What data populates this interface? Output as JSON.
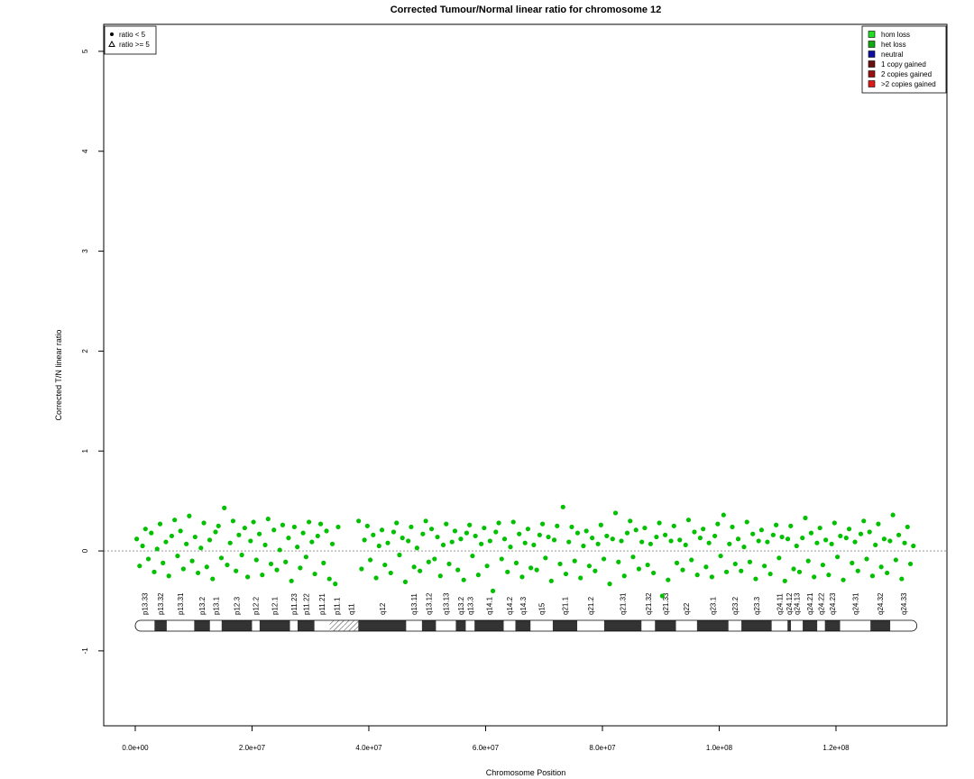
{
  "chart_data": {
    "type": "scatter",
    "title": "Corrected Tumour/Normal linear ratio for chromosome  12",
    "x_label": "Chromosome Position",
    "y_label": "Corrected T/N linear ratio",
    "xlim": [
      -5400000,
      139000000
    ],
    "ylim": [
      -1.75,
      5.27
    ],
    "xticks": [
      {
        "value": 0,
        "label": "0.0e+00"
      },
      {
        "value": 20000000,
        "label": "2.0e+07"
      },
      {
        "value": 40000000,
        "label": "4.0e+07"
      },
      {
        "value": 60000000,
        "label": "6.0e+07"
      },
      {
        "value": 80000000,
        "label": "8.0e+07"
      },
      {
        "value": 100000000,
        "label": "1.0e+08"
      },
      {
        "value": 120000000,
        "label": "1.2e+08"
      }
    ],
    "yticks": [
      -1,
      0,
      1,
      2,
      3,
      4,
      5
    ],
    "hline": 0,
    "legend": "top-left",
    "series": [
      {
        "name": "ratio < 5",
        "marker": "circle",
        "color": "#00c000",
        "x": [
          250000.0,
          750000.0,
          1250000.0,
          1750000.0,
          2250000.0,
          2750000.0,
          3250000.0,
          3750000.0,
          4250000.0,
          4750000.0,
          5250000.0,
          5750000.0,
          6250000.0,
          6750000.0,
          7250000.0,
          7750000.0,
          8250000.0,
          8750000.0,
          9250000.0,
          9750000.0,
          10250000.0,
          10750000.0,
          11250000.0,
          11750000.0,
          12250000.0,
          12750000.0,
          13250000.0,
          13750000.0,
          14250000.0,
          14750000.0,
          15250000.0,
          15750000.0,
          16250000.0,
          16750000.0,
          17250000.0,
          17750000.0,
          18250000.0,
          18750000.0,
          19250000.0,
          19750000.0,
          20250000.0,
          20750000.0,
          21250000.0,
          21750000.0,
          22250000.0,
          22750000.0,
          23250000.0,
          23750000.0,
          24250000.0,
          24750000.0,
          25250000.0,
          25750000.0,
          26250000.0,
          26750000.0,
          27250000.0,
          27750000.0,
          28250000.0,
          28750000.0,
          29250000.0,
          29750000.0,
          30250000.0,
          30750000.0,
          31250000.0,
          31750000.0,
          32250000.0,
          32750000.0,
          33250000.0,
          33750000.0,
          34250000.0,
          34750000.0,
          38250000.0,
          38750000.0,
          39250000.0,
          39750000.0,
          40250000.0,
          40750000.0,
          41250000.0,
          41750000.0,
          42250000.0,
          42750000.0,
          43250000.0,
          43750000.0,
          44250000.0,
          44750000.0,
          45250000.0,
          45750000.0,
          46250000.0,
          46750000.0,
          47250000.0,
          47750000.0,
          48250000.0,
          48750000.0,
          49250000.0,
          49750000.0,
          50250000.0,
          50750000.0,
          51250000.0,
          51750000.0,
          52250000.0,
          52750000.0,
          53250000.0,
          53750000.0,
          54250000.0,
          54750000.0,
          55250000.0,
          55750000.0,
          56250000.0,
          56750000.0,
          57250000.0,
          57750000.0,
          58250000.0,
          58750000.0,
          59250000.0,
          59750000.0,
          60250000.0,
          60750000.0,
          61250000.0,
          61750000.0,
          62250000.0,
          62750000.0,
          63250000.0,
          63750000.0,
          64250000.0,
          64750000.0,
          65250000.0,
          65750000.0,
          66250000.0,
          66750000.0,
          67250000.0,
          67750000.0,
          68250000.0,
          68750000.0,
          69250000.0,
          69750000.0,
          70250000.0,
          70750000.0,
          71250000.0,
          71750000.0,
          72250000.0,
          72750000.0,
          73250000.0,
          73750000.0,
          74250000.0,
          74750000.0,
          75250000.0,
          75750000.0,
          76250000.0,
          76750000.0,
          77250000.0,
          77750000.0,
          78250000.0,
          78750000.0,
          79250000.0,
          79750000.0,
          80250000.0,
          80750000.0,
          81250000.0,
          81750000.0,
          82250000.0,
          82750000.0,
          83250000.0,
          83750000.0,
          84250000.0,
          84750000.0,
          85250000.0,
          85750000.0,
          86250000.0,
          86750000.0,
          87250000.0,
          87750000.0,
          88250000.0,
          88750000.0,
          89250000.0,
          89750000.0,
          90250000.0,
          90750000.0,
          91250000.0,
          91750000.0,
          92250000.0,
          92750000.0,
          93250000.0,
          93750000.0,
          94250000.0,
          94750000.0,
          95250000.0,
          95750000.0,
          96250000.0,
          96750000.0,
          97250000.0,
          97750000.0,
          98250000.0,
          98750000.0,
          99250000.0,
          99750000.0,
          100250000.0,
          100750000.0,
          101250000.0,
          101750000.0,
          102250000.0,
          102750000.0,
          103250000.0,
          103750000.0,
          104250000.0,
          104750000.0,
          105250000.0,
          105750000.0,
          106250000.0,
          106750000.0,
          107250000.0,
          107750000.0,
          108250000.0,
          108750000.0,
          109250000.0,
          109750000.0,
          110250000.0,
          110750000.0,
          111250000.0,
          111750000.0,
          112250000.0,
          112750000.0,
          113250000.0,
          113750000.0,
          114250000.0,
          114750000.0,
          115250000.0,
          115750000.0,
          116250000.0,
          116750000.0,
          117250000.0,
          117750000.0,
          118250000.0,
          118750000.0,
          119250000.0,
          119750000.0,
          120250000.0,
          120750000.0,
          121250000.0,
          121750000.0,
          122250000.0,
          122750000.0,
          123250000.0,
          123750000.0,
          124250000.0,
          124750000.0,
          125250000.0,
          125750000.0,
          126250000.0,
          126750000.0,
          127250000.0,
          127750000.0,
          128250000.0,
          128750000.0,
          129250000.0,
          129750000.0,
          130250000.0,
          130750000.0,
          131250000.0,
          131750000.0,
          132250000.0,
          132750000.0,
          133250000.0
        ],
        "values": [
          0.12,
          -0.15,
          0.05,
          0.22,
          -0.08,
          0.18,
          -0.21,
          0.02,
          0.27,
          -0.12,
          0.09,
          -0.25,
          0.15,
          0.31,
          -0.05,
          0.2,
          -0.18,
          0.07,
          0.35,
          -0.1,
          0.14,
          -0.22,
          0.03,
          0.28,
          -0.16,
          0.11,
          -0.28,
          0.19,
          0.25,
          -0.07,
          0.43,
          -0.14,
          0.08,
          0.3,
          -0.2,
          0.16,
          -0.04,
          0.23,
          -0.26,
          0.1,
          0.29,
          -0.09,
          0.17,
          -0.24,
          0.06,
          0.32,
          -0.13,
          0.21,
          -0.19,
          0.01,
          0.26,
          -0.11,
          0.13,
          -0.3,
          0.24,
          0.04,
          -0.17,
          0.18,
          -0.06,
          0.29,
          0.09,
          -0.23,
          0.15,
          0.27,
          -0.12,
          0.2,
          -0.28,
          0.07,
          -0.33,
          0.24,
          0.3,
          -0.18,
          0.11,
          0.25,
          -0.09,
          0.16,
          -0.27,
          0.05,
          0.21,
          -0.14,
          0.08,
          -0.22,
          0.19,
          0.28,
          -0.04,
          0.13,
          -0.31,
          0.1,
          0.24,
          -0.16,
          0.03,
          -0.2,
          0.17,
          0.3,
          -0.11,
          0.22,
          -0.08,
          0.14,
          -0.25,
          0.06,
          0.27,
          -0.13,
          0.09,
          0.2,
          -0.19,
          0.12,
          -0.29,
          0.18,
          0.26,
          -0.05,
          0.15,
          -0.24,
          0.07,
          0.23,
          -0.15,
          0.1,
          -0.4,
          0.19,
          0.28,
          -0.08,
          0.12,
          -0.21,
          0.04,
          0.29,
          -0.12,
          0.17,
          -0.26,
          0.08,
          0.22,
          -0.17,
          0.06,
          -0.19,
          0.16,
          0.27,
          -0.07,
          0.14,
          -0.3,
          0.11,
          0.25,
          -0.13,
          0.44,
          -0.23,
          0.09,
          0.24,
          -0.1,
          0.18,
          -0.27,
          0.05,
          0.2,
          -0.15,
          0.13,
          -0.2,
          0.07,
          0.26,
          -0.08,
          0.15,
          -0.33,
          0.12,
          0.38,
          -0.11,
          0.1,
          -0.25,
          0.18,
          0.3,
          -0.06,
          0.21,
          -0.18,
          0.09,
          0.23,
          -0.14,
          0.07,
          -0.22,
          0.14,
          0.28,
          -0.45,
          0.16,
          -0.29,
          0.1,
          0.25,
          -0.12,
          0.11,
          -0.19,
          0.06,
          0.31,
          -0.09,
          0.19,
          -0.24,
          0.13,
          0.22,
          -0.16,
          0.08,
          -0.26,
          0.15,
          0.27,
          -0.05,
          0.36,
          -0.21,
          0.07,
          0.24,
          -0.13,
          0.12,
          -0.2,
          0.04,
          0.29,
          -0.11,
          0.17,
          -0.28,
          0.1,
          0.21,
          -0.15,
          0.09,
          -0.23,
          0.16,
          0.26,
          -0.07,
          0.14,
          -0.3,
          0.12,
          0.25,
          -0.18,
          0.05,
          -0.21,
          0.13,
          0.33,
          -0.1,
          0.18,
          -0.26,
          0.08,
          0.23,
          -0.14,
          0.11,
          -0.24,
          0.07,
          0.28,
          -0.06,
          0.15,
          -0.29,
          0.13,
          0.22,
          -0.12,
          0.09,
          -0.2,
          0.17,
          0.3,
          -0.08,
          0.19,
          -0.25,
          0.06,
          0.27,
          -0.16,
          0.12,
          -0.22,
          0.1,
          0.36,
          -0.09,
          0.16,
          -0.28,
          0.08,
          0.24,
          -0.13,
          0.05
        ]
      },
      {
        "name": "ratio >= 5",
        "marker": "triangle",
        "color": "#00c000",
        "x": [],
        "values": []
      }
    ],
    "copy_number_legend": {
      "position": "top-right",
      "entries": [
        {
          "name": "hom loss",
          "color": "#22dd22"
        },
        {
          "name": "het loss",
          "color": "#11aa11"
        },
        {
          "name": "neutral",
          "color": "#1010a0"
        },
        {
          "name": "1 copy gained",
          "color": "#6a1010"
        },
        {
          "name": "2 copies gained",
          "color": "#9a1010"
        },
        {
          "name": ">2 copies gained",
          "color": "#dd1a1a"
        }
      ]
    },
    "ideogram": [
      {
        "name": "p13.33",
        "start": 0,
        "end": 3300000,
        "color": "#ffffff"
      },
      {
        "name": "p13.32",
        "start": 3300000,
        "end": 5400000,
        "color": "#333333"
      },
      {
        "name": "p13.31",
        "start": 5400000,
        "end": 10100000,
        "color": "#ffffff"
      },
      {
        "name": "p13.2",
        "start": 10100000,
        "end": 12800000,
        "color": "#333333"
      },
      {
        "name": "p13.1",
        "start": 12800000,
        "end": 14800000,
        "color": "#ffffff"
      },
      {
        "name": "p12.3",
        "start": 14800000,
        "end": 20000000,
        "color": "#333333"
      },
      {
        "name": "p12.2",
        "start": 20000000,
        "end": 21300000,
        "color": "#ffffff"
      },
      {
        "name": "p12.1",
        "start": 21300000,
        "end": 26500000,
        "color": "#333333"
      },
      {
        "name": "p11.23",
        "start": 26500000,
        "end": 27800000,
        "color": "#ffffff"
      },
      {
        "name": "p11.22",
        "start": 27800000,
        "end": 30700000,
        "color": "#333333"
      },
      {
        "name": "p11.21",
        "start": 30700000,
        "end": 33300000,
        "color": "#ffffff"
      },
      {
        "name": "p11.1",
        "start": 33300000,
        "end": 35800000,
        "color": "hatch"
      },
      {
        "name": "q11",
        "start": 35800000,
        "end": 38200000,
        "color": "hatch"
      },
      {
        "name": "q12",
        "start": 38200000,
        "end": 46400000,
        "color": "#333333"
      },
      {
        "name": "q13.11",
        "start": 46400000,
        "end": 49100000,
        "color": "#ffffff"
      },
      {
        "name": "q13.12",
        "start": 49100000,
        "end": 51500000,
        "color": "#333333"
      },
      {
        "name": "q13.13",
        "start": 51500000,
        "end": 54900000,
        "color": "#ffffff"
      },
      {
        "name": "q13.2",
        "start": 54900000,
        "end": 56600000,
        "color": "#333333"
      },
      {
        "name": "q13.3",
        "start": 56600000,
        "end": 58100000,
        "color": "#ffffff"
      },
      {
        "name": "q14.1",
        "start": 58100000,
        "end": 63100000,
        "color": "#333333"
      },
      {
        "name": "q14.2",
        "start": 63100000,
        "end": 65100000,
        "color": "#ffffff"
      },
      {
        "name": "q14.3",
        "start": 65100000,
        "end": 67700000,
        "color": "#333333"
      },
      {
        "name": "q15",
        "start": 67700000,
        "end": 71500000,
        "color": "#ffffff"
      },
      {
        "name": "q21.1",
        "start": 71500000,
        "end": 75700000,
        "color": "#333333"
      },
      {
        "name": "q21.2",
        "start": 75700000,
        "end": 80300000,
        "color": "#ffffff"
      },
      {
        "name": "q21.31",
        "start": 80300000,
        "end": 86700000,
        "color": "#333333"
      },
      {
        "name": "q21.32",
        "start": 86700000,
        "end": 89000000,
        "color": "#ffffff"
      },
      {
        "name": "q21.33",
        "start": 89000000,
        "end": 92600000,
        "color": "#333333"
      },
      {
        "name": "q22",
        "start": 92600000,
        "end": 96200000,
        "color": "#ffffff"
      },
      {
        "name": "q23.1",
        "start": 96200000,
        "end": 101600000,
        "color": "#333333"
      },
      {
        "name": "q23.2",
        "start": 101600000,
        "end": 103800000,
        "color": "#ffffff"
      },
      {
        "name": "q23.3",
        "start": 103800000,
        "end": 109000000,
        "color": "#333333"
      },
      {
        "name": "q24.11",
        "start": 109000000,
        "end": 111700000,
        "color": "#ffffff"
      },
      {
        "name": "q24.12",
        "start": 111700000,
        "end": 112300000,
        "color": "#333333"
      },
      {
        "name": "q24.13",
        "start": 112300000,
        "end": 114300000,
        "color": "#ffffff"
      },
      {
        "name": "q24.21",
        "start": 114300000,
        "end": 116800000,
        "color": "#333333"
      },
      {
        "name": "q24.22",
        "start": 116800000,
        "end": 118100000,
        "color": "#ffffff"
      },
      {
        "name": "q24.23",
        "start": 118100000,
        "end": 120700000,
        "color": "#333333"
      },
      {
        "name": "q24.31",
        "start": 120700000,
        "end": 125900000,
        "color": "#ffffff"
      },
      {
        "name": "q24.32",
        "start": 125900000,
        "end": 129300000,
        "color": "#333333"
      },
      {
        "name": "q24.33",
        "start": 129300000,
        "end": 133850000,
        "color": "#ffffff"
      }
    ]
  }
}
